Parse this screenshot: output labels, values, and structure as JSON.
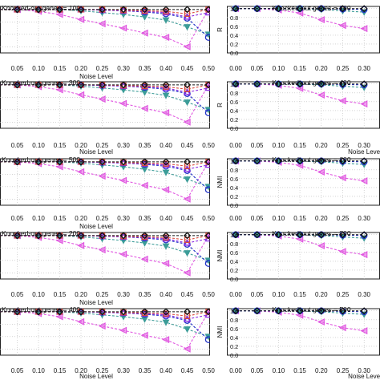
{
  "figure": {
    "panels": [
      {
        "id": "left-1",
        "title": "Knocked-out genes = 100",
        "ylabel": "",
        "xlabel": "Noise Level"
      },
      {
        "id": "right-1",
        "title": "Knocked-out genes = 200",
        "ylabel": "R",
        "xlabel": ""
      },
      {
        "id": "left-2",
        "title": "Knocked-out genes = 300",
        "ylabel": "",
        "xlabel": "Noise Level"
      },
      {
        "id": "right-2",
        "title": "Knocked-out genes = 400",
        "ylabel": "R",
        "xlabel": "Noise Level"
      },
      {
        "id": "left-3",
        "title": "Knocked-out genes = 500",
        "ylabel": "",
        "xlabel": "Noise Level"
      },
      {
        "id": "right-3",
        "title": "Knocked-out genes = 100",
        "ylabel": "NMI",
        "xlabel": ""
      },
      {
        "id": "left-4",
        "title": "Knocked-out genes = 200",
        "ylabel": "",
        "xlabel": "Noise Level"
      },
      {
        "id": "right-4",
        "title": "Knocked-out genes = 300",
        "ylabel": "NMI",
        "xlabel": ""
      },
      {
        "id": "left-5",
        "title": "Knocked-out genes = 400",
        "ylabel": "",
        "xlabel": "Noise Level"
      },
      {
        "id": "right-5",
        "title": "Knocked-out genes = 500",
        "ylabel": "NMI",
        "xlabel": "Noise Level"
      }
    ]
  },
  "chart_data": [
    {
      "type": "line",
      "panel": "left",
      "titles": [
        "Knocked-out genes = 100",
        "Knocked-out genes = 300",
        "Knocked-out genes = 500",
        "Knocked-out genes = 200",
        "Knocked-out genes = 400"
      ],
      "xlabel": "Noise Level",
      "x": [
        0.0,
        0.05,
        0.1,
        0.15,
        0.2,
        0.25,
        0.3,
        0.35,
        0.4,
        0.45,
        0.5
      ],
      "xticks": [
        "0.05",
        "0.10",
        "0.15",
        "0.20",
        "0.25",
        "0.30",
        "0.35",
        "0.40",
        "0.45",
        "0.50"
      ],
      "ylim": [
        0.3,
        1.05
      ],
      "grid": true,
      "series": [
        {
          "color": "#e056e0",
          "marker": "triangle-left",
          "values": [
            1.0,
            1.0,
            0.97,
            0.92,
            0.84,
            0.77,
            0.7,
            0.62,
            0.55,
            0.4,
            1.0
          ]
        },
        {
          "color": "#3c9c98",
          "marker": "triangle-down",
          "values": [
            1.0,
            1.0,
            1.0,
            1.0,
            0.98,
            0.95,
            0.92,
            0.88,
            0.83,
            0.72,
            0.6
          ]
        },
        {
          "color": "#2232c8",
          "marker": "circle",
          "values": [
            1.0,
            1.0,
            1.0,
            1.0,
            1.0,
            0.99,
            0.98,
            0.96,
            0.93,
            0.86,
            0.55
          ]
        },
        {
          "color": "#8a2be2",
          "marker": "triangle-up",
          "values": [
            1.0,
            1.0,
            1.0,
            1.0,
            1.0,
            0.99,
            0.98,
            0.97,
            0.95,
            0.88,
            0.95
          ]
        },
        {
          "color": "#d94a3c",
          "marker": "square",
          "values": [
            1.0,
            1.0,
            1.0,
            1.0,
            1.0,
            1.0,
            0.99,
            0.98,
            0.97,
            0.93,
            1.0
          ]
        },
        {
          "color": "#111111",
          "marker": "diamond",
          "values": [
            1.0,
            1.0,
            1.0,
            1.0,
            1.0,
            1.0,
            1.0,
            1.0,
            1.0,
            1.0,
            1.0
          ]
        }
      ]
    },
    {
      "type": "line",
      "panel": "right",
      "titles": [
        "Knocked-out genes = 200",
        "Knocked-out genes = 400",
        "Knocked-out genes = 100",
        "Knocked-out genes = 300",
        "Knocked-out genes = 500"
      ],
      "ylabels": [
        "R",
        "R",
        "NMI",
        "NMI",
        "NMI"
      ],
      "xlabel": "Noise Level",
      "x": [
        0.0,
        0.05,
        0.1,
        0.15,
        0.2,
        0.25,
        0.3
      ],
      "xticks": [
        "0.00",
        "0.05",
        "0.10",
        "0.15",
        "0.20",
        "0.25",
        "0.30"
      ],
      "yticks": [
        "0.0",
        "0.2",
        "0.4",
        "0.6",
        "0.8",
        "1.0"
      ],
      "ylim": [
        0.0,
        1.05
      ],
      "grid": true,
      "series": [
        {
          "color": "#e056e0",
          "marker": "triangle-left",
          "values": [
            1.0,
            1.0,
            0.97,
            0.9,
            0.75,
            0.62,
            0.55
          ]
        },
        {
          "color": "#3c9c98",
          "marker": "triangle-down",
          "values": [
            1.0,
            1.0,
            1.0,
            1.0,
            0.98,
            0.95,
            0.92
          ]
        },
        {
          "color": "#2232c8",
          "marker": "circle",
          "values": [
            1.0,
            1.0,
            1.0,
            1.0,
            1.0,
            0.99,
            0.98
          ]
        },
        {
          "color": "#111111",
          "marker": "diamond",
          "values": [
            1.0,
            1.0,
            1.0,
            1.0,
            1.0,
            1.0,
            1.0
          ]
        }
      ]
    }
  ]
}
